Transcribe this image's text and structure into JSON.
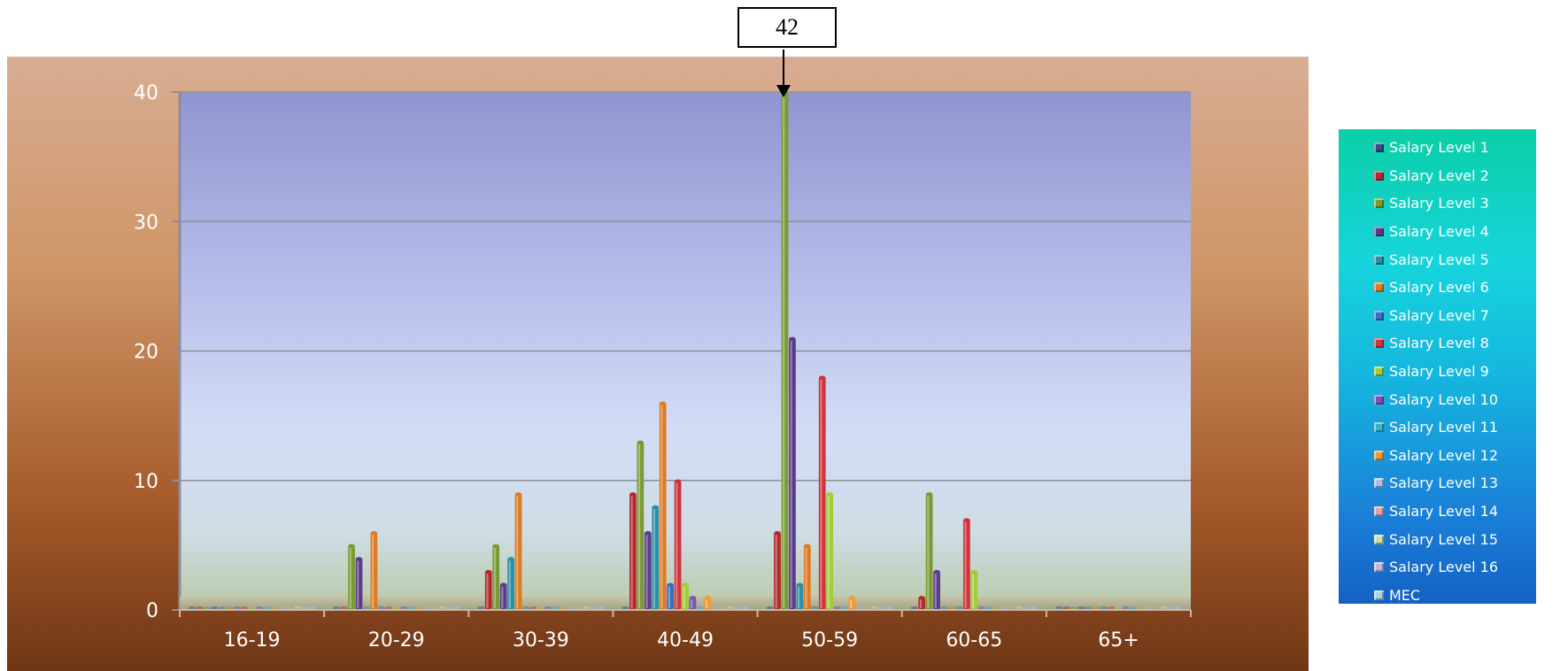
{
  "callout": {
    "label": "42"
  },
  "chart_data": {
    "type": "bar",
    "categories": [
      "16-19",
      "20-29",
      "30-39",
      "40-49",
      "50-59",
      "60-65",
      "65+"
    ],
    "ylim": [
      0,
      40
    ],
    "yticks": [
      0,
      10,
      20,
      30,
      40
    ],
    "grid": true,
    "legend_position": "right",
    "series": [
      {
        "name": "Salary Level 1",
        "color": "#2a4f8c",
        "values": [
          0,
          0,
          0,
          0,
          0,
          0,
          0
        ]
      },
      {
        "name": "Salary Level 2",
        "color": "#b22a2e",
        "values": [
          0,
          0,
          3,
          9,
          6,
          1,
          0
        ]
      },
      {
        "name": "Salary Level 3",
        "color": "#7a9a32",
        "values": [
          0,
          5,
          5,
          13,
          42,
          9,
          0
        ]
      },
      {
        "name": "Salary Level 4",
        "color": "#5b3c8c",
        "values": [
          0,
          4,
          2,
          6,
          21,
          3,
          0
        ]
      },
      {
        "name": "Salary Level 5",
        "color": "#2b8fa8",
        "values": [
          0,
          0,
          4,
          8,
          2,
          0,
          0
        ]
      },
      {
        "name": "Salary Level 6",
        "color": "#e07a22",
        "values": [
          0,
          6,
          9,
          16,
          5,
          0,
          0
        ]
      },
      {
        "name": "Salary Level 7",
        "color": "#3a6fc0",
        "values": [
          0,
          0,
          0,
          2,
          0,
          0,
          0
        ]
      },
      {
        "name": "Salary Level 8",
        "color": "#d1333a",
        "values": [
          0,
          0,
          0,
          10,
          18,
          7,
          0
        ]
      },
      {
        "name": "Salary Level 9",
        "color": "#a2cc3a",
        "values": [
          0,
          0,
          0,
          2,
          9,
          3,
          0
        ]
      },
      {
        "name": "Salary Level 10",
        "color": "#7a55b4",
        "values": [
          0,
          0,
          0,
          1,
          0,
          0,
          0
        ]
      },
      {
        "name": "Salary Level 11",
        "color": "#35b5cc",
        "values": [
          0,
          0,
          0,
          0,
          0,
          0,
          0
        ]
      },
      {
        "name": "Salary Level 12",
        "color": "#f29b30",
        "values": [
          0,
          0,
          0,
          1,
          1,
          0,
          0
        ]
      },
      {
        "name": "Salary Level 13",
        "color": "#a9bfe3",
        "values": [
          0,
          0,
          0,
          0,
          0,
          0,
          0
        ]
      },
      {
        "name": "Salary Level 14",
        "color": "#e3a3a5",
        "values": [
          0,
          0,
          0,
          0,
          0,
          0,
          0
        ]
      },
      {
        "name": "Salary Level 15",
        "color": "#cfe0a6",
        "values": [
          0,
          0,
          0,
          0,
          0,
          0,
          0
        ]
      },
      {
        "name": "Salary Level 16",
        "color": "#c3b6d9",
        "values": [
          0,
          0,
          0,
          0,
          0,
          0,
          0
        ]
      },
      {
        "name": "MEC",
        "color": "#a6d6e3",
        "values": [
          0,
          0,
          0,
          0,
          0,
          0,
          0
        ]
      }
    ]
  }
}
